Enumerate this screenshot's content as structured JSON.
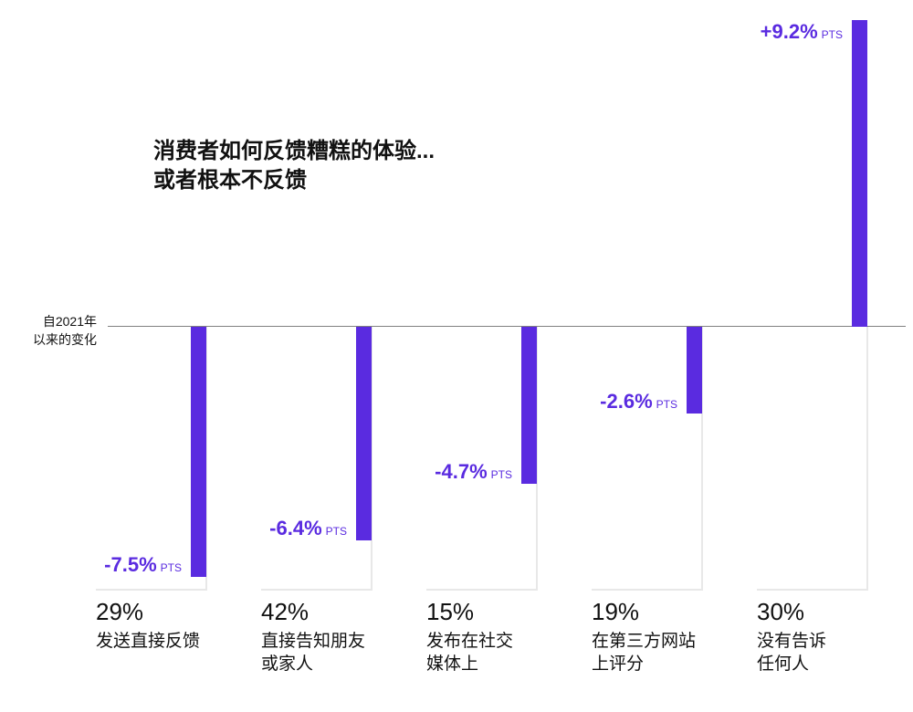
{
  "chart_data": {
    "type": "bar",
    "title_lines": [
      "消费者如何反馈糟糕的体验...",
      "或者根本不反馈"
    ],
    "ylabel_lines": [
      "自2021年",
      "以来的变化"
    ],
    "unit": "PTS",
    "bar_color": "#5a2be0",
    "categories": [
      {
        "share": "29%",
        "label_lines": [
          "发送直接反馈"
        ],
        "change": -7.5,
        "change_label": "-7.5%"
      },
      {
        "share": "42%",
        "label_lines": [
          "直接告知朋友",
          "或家人"
        ],
        "change": -6.4,
        "change_label": "-6.4%"
      },
      {
        "share": "15%",
        "label_lines": [
          "发布在社交",
          "媒体上"
        ],
        "change": -4.7,
        "change_label": "-4.7%"
      },
      {
        "share": "19%",
        "label_lines": [
          "在第三方网站",
          "上评分"
        ],
        "change": -2.6,
        "change_label": "-2.6%"
      },
      {
        "share": "30%",
        "label_lines": [
          "没有告诉",
          "任何人"
        ],
        "change": 9.2,
        "change_label": "+9.2%"
      }
    ]
  }
}
